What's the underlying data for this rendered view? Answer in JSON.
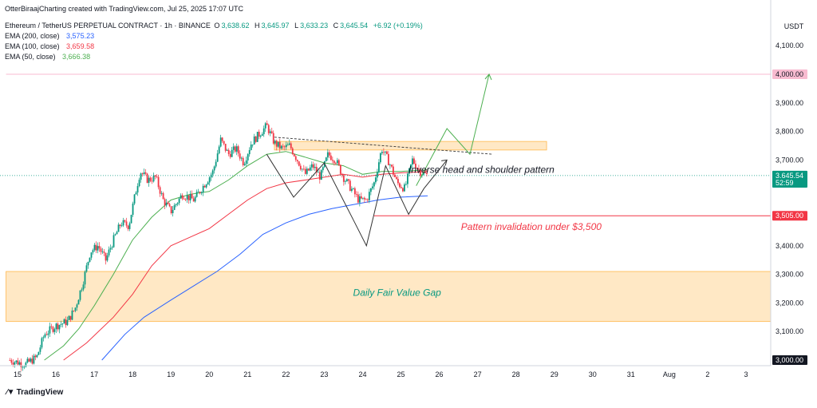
{
  "header": {
    "credit": "OtterBiraajCharting created with TradingView.com, Jul 25, 2025 17:07 UTC",
    "symbol": "Ethereum / TetherUS PERPETUAL CONTRACT · 1h · BINANCE",
    "ohlc": [
      {
        "label": "O",
        "value": "3,638.62"
      },
      {
        "label": "H",
        "value": "3,645.97"
      },
      {
        "label": "L",
        "value": "3,633.23"
      },
      {
        "label": "C",
        "value": "3,645.54"
      }
    ],
    "change": "+6.92 (+0.19%)",
    "emas": [
      {
        "label": "EMA (200, close)",
        "value": "3,575.23",
        "color": "#2962ff"
      },
      {
        "label": "EMA (100, close)",
        "value": "3,659.58",
        "color": "#f23645"
      },
      {
        "label": "EMA (50, close)",
        "value": "3,666.38",
        "color": "#4caf50"
      }
    ]
  },
  "footer": {
    "brand": "TradingView"
  },
  "colors": {
    "up": "#089981",
    "down": "#f23645",
    "ema200": "#2962ff",
    "ema100": "#f23645",
    "ema50": "#4caf50",
    "zone": "#ffe0b2",
    "zone_border": "#ffb74d",
    "annotation_green": "#089981",
    "annotation_red": "#f23645"
  },
  "chart_data": {
    "type": "candlestick",
    "currency": "USDT",
    "x_ticks": [
      "15",
      "16",
      "17",
      "18",
      "19",
      "20",
      "21",
      "22",
      "23",
      "24",
      "25",
      "26",
      "27",
      "28",
      "29",
      "30",
      "31",
      "Aug",
      "2",
      "3"
    ],
    "y_ticks": [
      "3,000.00",
      "3,100.00",
      "3,200.00",
      "3,300.00",
      "3,400.00",
      "3,500.00",
      "3,600.00",
      "3,700.00",
      "3,800.00",
      "3,900.00",
      "4,000.00",
      "4,100.00"
    ],
    "y_tick_values": [
      3000,
      3100,
      3200,
      3300,
      3400,
      3500,
      3600,
      3700,
      3800,
      3900,
      4000,
      4100
    ],
    "ylim": [
      2980,
      4180
    ],
    "xlim_days": [
      14.7,
      34.8
    ],
    "price_labels": [
      {
        "text": "4,000.00",
        "value": 4000,
        "bg": "#f8bbd0",
        "fg": "#131722"
      },
      {
        "text": "3,645.54",
        "value": 3645.54,
        "bg": "#089981",
        "fg": "#ffffff"
      },
      {
        "text": "52:59",
        "value": 3620,
        "bg": "#089981",
        "fg": "#ffffff"
      },
      {
        "text": "3,505.00",
        "value": 3505,
        "bg": "#f23645",
        "fg": "#ffffff"
      },
      {
        "text": "3,000.00",
        "value": 3000,
        "bg": "#131722",
        "fg": "#ffffff"
      }
    ],
    "price_path": [
      [
        14.8,
        3000
      ],
      [
        15.2,
        2985
      ],
      [
        15.5,
        3010
      ],
      [
        15.7,
        3090
      ],
      [
        16.0,
        3120
      ],
      [
        16.3,
        3135
      ],
      [
        16.5,
        3180
      ],
      [
        16.7,
        3270
      ],
      [
        16.9,
        3380
      ],
      [
        17.1,
        3400
      ],
      [
        17.3,
        3350
      ],
      [
        17.5,
        3420
      ],
      [
        17.7,
        3480
      ],
      [
        17.9,
        3470
      ],
      [
        18.1,
        3600
      ],
      [
        18.2,
        3660
      ],
      [
        18.4,
        3630
      ],
      [
        18.6,
        3640
      ],
      [
        18.8,
        3560
      ],
      [
        19.0,
        3520
      ],
      [
        19.3,
        3580
      ],
      [
        19.6,
        3560
      ],
      [
        19.9,
        3620
      ],
      [
        20.1,
        3660
      ],
      [
        20.3,
        3770
      ],
      [
        20.5,
        3720
      ],
      [
        20.7,
        3740
      ],
      [
        20.9,
        3690
      ],
      [
        21.1,
        3760
      ],
      [
        21.3,
        3790
      ],
      [
        21.5,
        3820
      ],
      [
        21.7,
        3760
      ],
      [
        21.9,
        3740
      ],
      [
        22.1,
        3750
      ],
      [
        22.3,
        3700
      ],
      [
        22.5,
        3650
      ],
      [
        22.7,
        3680
      ],
      [
        22.9,
        3640
      ],
      [
        23.1,
        3720
      ],
      [
        23.3,
        3700
      ],
      [
        23.5,
        3640
      ],
      [
        23.7,
        3600
      ],
      [
        23.9,
        3560
      ],
      [
        24.1,
        3560
      ],
      [
        24.3,
        3620
      ],
      [
        24.5,
        3740
      ],
      [
        24.7,
        3690
      ],
      [
        24.9,
        3620
      ],
      [
        25.1,
        3600
      ],
      [
        25.3,
        3700
      ],
      [
        25.5,
        3660
      ],
      [
        25.7,
        3645
      ]
    ],
    "ema50": [
      [
        15.7,
        3000
      ],
      [
        16.2,
        3050
      ],
      [
        16.6,
        3110
      ],
      [
        17.0,
        3190
      ],
      [
        17.5,
        3300
      ],
      [
        18.0,
        3420
      ],
      [
        18.5,
        3500
      ],
      [
        19.0,
        3560
      ],
      [
        19.5,
        3580
      ],
      [
        20.0,
        3590
      ],
      [
        20.5,
        3630
      ],
      [
        21.0,
        3680
      ],
      [
        21.5,
        3720
      ],
      [
        22.0,
        3730
      ],
      [
        22.5,
        3710
      ],
      [
        23.0,
        3690
      ],
      [
        23.5,
        3680
      ],
      [
        24.0,
        3650
      ],
      [
        24.5,
        3660
      ],
      [
        25.0,
        3660
      ],
      [
        25.7,
        3666
      ]
    ],
    "ema100": [
      [
        16.2,
        3000
      ],
      [
        16.8,
        3060
      ],
      [
        17.5,
        3150
      ],
      [
        18.0,
        3230
      ],
      [
        18.5,
        3330
      ],
      [
        19.0,
        3400
      ],
      [
        19.5,
        3430
      ],
      [
        20.0,
        3460
      ],
      [
        20.5,
        3510
      ],
      [
        21.0,
        3560
      ],
      [
        21.5,
        3600
      ],
      [
        22.0,
        3620
      ],
      [
        22.5,
        3630
      ],
      [
        23.0,
        3640
      ],
      [
        23.5,
        3650
      ],
      [
        24.0,
        3640
      ],
      [
        24.5,
        3650
      ],
      [
        25.0,
        3655
      ],
      [
        25.7,
        3660
      ]
    ],
    "ema200": [
      [
        17.2,
        3000
      ],
      [
        17.8,
        3090
      ],
      [
        18.3,
        3150
      ],
      [
        19.0,
        3210
      ],
      [
        19.6,
        3260
      ],
      [
        20.2,
        3310
      ],
      [
        20.8,
        3370
      ],
      [
        21.4,
        3440
      ],
      [
        22.0,
        3480
      ],
      [
        22.6,
        3510
      ],
      [
        23.2,
        3530
      ],
      [
        23.8,
        3545
      ],
      [
        24.4,
        3560
      ],
      [
        25.0,
        3570
      ],
      [
        25.7,
        3575
      ]
    ],
    "zones": [
      {
        "name": "resistance-zone",
        "x0": 21.7,
        "x1": 28.8,
        "y0": 3735,
        "y1": 3765
      },
      {
        "name": "fair-value-gap",
        "x0": 14.7,
        "x1": 34.8,
        "y0": 3135,
        "y1": 3310
      }
    ],
    "horizontal_lines": [
      {
        "value": 4000,
        "color": "#f8bbd0",
        "x0": 14.7
      },
      {
        "value": 3505,
        "color": "#f23645",
        "x0": 24.3
      }
    ],
    "neckline": [
      [
        21.7,
        3780
      ],
      [
        27.4,
        3720
      ]
    ],
    "pattern_path": [
      [
        21.5,
        3720
      ],
      [
        22.2,
        3570
      ],
      [
        23.0,
        3690
      ],
      [
        23.8,
        3480
      ],
      [
        24.1,
        3400
      ],
      [
        24.6,
        3680
      ],
      [
        25.2,
        3510
      ],
      [
        25.6,
        3600
      ],
      [
        26.2,
        3700
      ]
    ],
    "projection_path": [
      [
        25.4,
        3610
      ],
      [
        26.2,
        3810
      ],
      [
        26.8,
        3720
      ],
      [
        27.3,
        4000
      ]
    ],
    "annotations": [
      {
        "name": "pattern-label",
        "text": "Inverse head and shoulder pattern",
        "x": 27.1,
        "y": 3655,
        "color": "#131722"
      },
      {
        "name": "invalidation-label",
        "text": "Pattern invalidation under $3,500",
        "x": 28.4,
        "y": 3455,
        "color": "#f23645"
      },
      {
        "name": "fvg-label",
        "text": "Daily Fair Value Gap",
        "x": 24.9,
        "y": 3225,
        "color": "#089981"
      }
    ]
  }
}
